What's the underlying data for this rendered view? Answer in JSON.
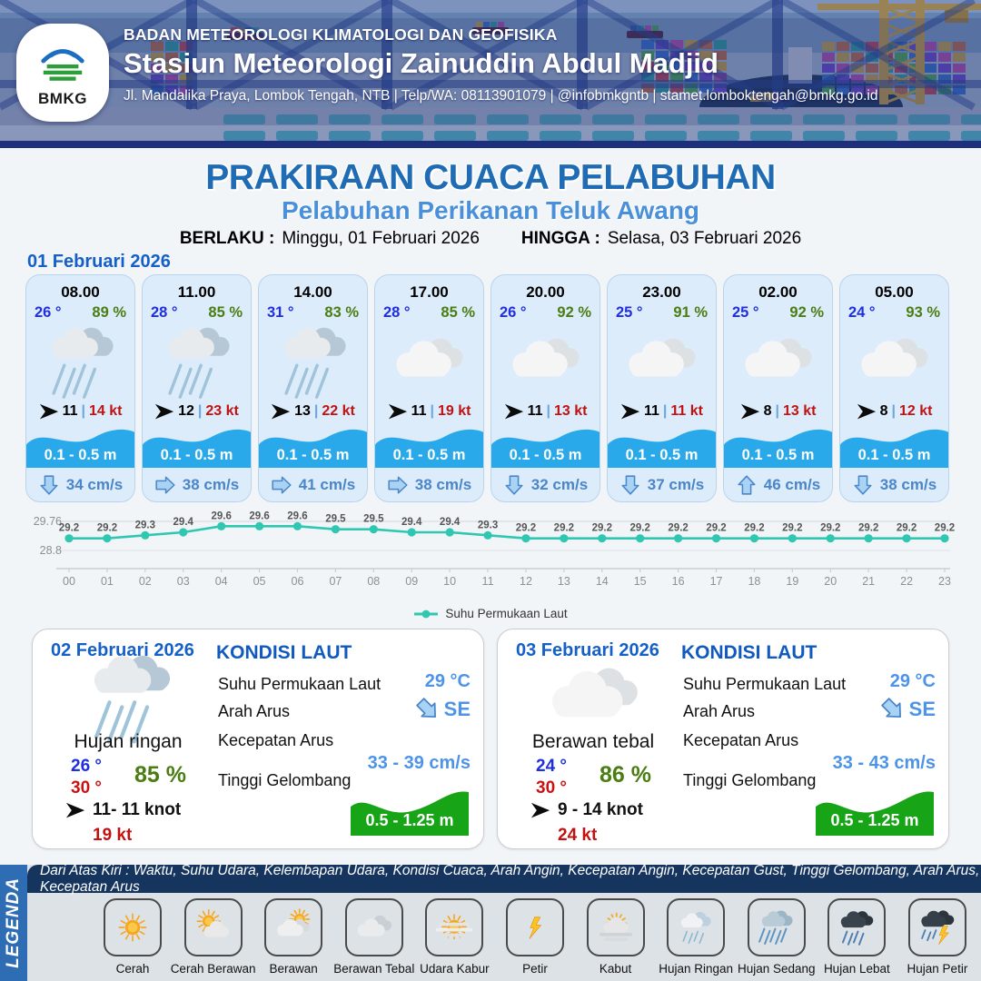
{
  "header": {
    "logo_text": "BMKG",
    "org": "BADAN METEOROLOGI KLIMATOLOGI DAN GEOFISIKA",
    "station": "Stasiun Meteorologi Zainuddin Abdul Madjid",
    "contact": "Jl. Mandalika Praya, Lombok Tengah, NTB | Telp/WA: 08113901079 | @infobmkgntb | stamet.lomboktengah@bmkg.go.id"
  },
  "title": {
    "main": "PRAKIRAAN CUACA PELABUHAN",
    "sub": "Pelabuhan Perikanan Teluk Awang",
    "valid_from_label": "BERLAKU :",
    "valid_from": "Minggu, 01 Februari 2026",
    "valid_to_label": "HINGGA :",
    "valid_to": "Selasa, 03 Februari 2026"
  },
  "ui": {
    "wind_separator": "|"
  },
  "hourly": {
    "date": "01 Februari 2026",
    "cards": [
      {
        "time": "08.00",
        "temp": "26 °",
        "humidity": "89 %",
        "icon": "rain-light",
        "wind": "11",
        "gust": "14 kt",
        "wave": "0.1 - 0.5 m",
        "current_dir": "down",
        "current": "34 cm/s"
      },
      {
        "time": "11.00",
        "temp": "28 °",
        "humidity": "85 %",
        "icon": "rain-light",
        "wind": "12",
        "gust": "23 kt",
        "wave": "0.1 - 0.5 m",
        "current_dir": "right",
        "current": "38 cm/s"
      },
      {
        "time": "14.00",
        "temp": "31 °",
        "humidity": "83 %",
        "icon": "rain-light",
        "wind": "13",
        "gust": "22 kt",
        "wave": "0.1 - 0.5 m",
        "current_dir": "right",
        "current": "41 cm/s"
      },
      {
        "time": "17.00",
        "temp": "28 °",
        "humidity": "85 %",
        "icon": "cloudy",
        "wind": "11",
        "gust": "19 kt",
        "wave": "0.1 - 0.5 m",
        "current_dir": "right",
        "current": "38 cm/s"
      },
      {
        "time": "20.00",
        "temp": "26 °",
        "humidity": "92 %",
        "icon": "cloudy",
        "wind": "11",
        "gust": "13 kt",
        "wave": "0.1 - 0.5 m",
        "current_dir": "down",
        "current": "32 cm/s"
      },
      {
        "time": "23.00",
        "temp": "25 °",
        "humidity": "91 %",
        "icon": "cloudy",
        "wind": "11",
        "gust": "11 kt",
        "wave": "0.1 - 0.5 m",
        "current_dir": "down",
        "current": "37 cm/s"
      },
      {
        "time": "02.00",
        "temp": "25 °",
        "humidity": "92 %",
        "icon": "cloudy",
        "wind": "8",
        "gust": "13 kt",
        "wave": "0.1 - 0.5 m",
        "current_dir": "up",
        "current": "46 cm/s"
      },
      {
        "time": "05.00",
        "temp": "24 °",
        "humidity": "93 %",
        "icon": "cloudy",
        "wind": "8",
        "gust": "12 kt",
        "wave": "0.1 - 0.5 m",
        "current_dir": "down",
        "current": "38 cm/s"
      }
    ]
  },
  "chart_data": {
    "type": "line",
    "x": [
      "00",
      "01",
      "02",
      "03",
      "04",
      "05",
      "06",
      "07",
      "08",
      "09",
      "10",
      "11",
      "12",
      "13",
      "14",
      "15",
      "16",
      "17",
      "18",
      "19",
      "20",
      "21",
      "22",
      "23"
    ],
    "values": [
      29.2,
      29.2,
      29.3,
      29.4,
      29.6,
      29.6,
      29.6,
      29.5,
      29.5,
      29.4,
      29.4,
      29.3,
      29.2,
      29.2,
      29.2,
      29.2,
      29.2,
      29.2,
      29.2,
      29.2,
      29.2,
      29.2,
      29.2,
      29.2
    ],
    "ylim": [
      28.8,
      29.76
    ],
    "yticks": [
      "29.76",
      "28.8"
    ],
    "legend": "Suhu Permukaan Laut",
    "line_color": "#2fc7b2",
    "grid": true,
    "legend_position": "bottom"
  },
  "daily": [
    {
      "date": "02 Februari 2026",
      "icon": "rain-light",
      "condition": "Hujan ringan",
      "temp_min": "26 °",
      "temp_max": "30 °",
      "humidity": "85 %",
      "wind": "11- 11 knot",
      "gust": "19 kt",
      "sea": {
        "title": "KONDISI LAUT",
        "sst_label": "Suhu Permukaan Laut",
        "sst": "29 °C",
        "dir_label": "Arah Arus",
        "dir": "SE",
        "speed_label": "Kecepatan Arus",
        "speed": "33 - 39 cm/s",
        "wave_label": "Tinggi Gelombang",
        "wave": "0.5 - 1.25 m"
      }
    },
    {
      "date": "03 Februari 2026",
      "icon": "cloudy",
      "condition": "Berawan tebal",
      "temp_min": "24 °",
      "temp_max": "30 °",
      "humidity": "86 %",
      "wind": "9 - 14 knot",
      "gust": "24 kt",
      "sea": {
        "title": "KONDISI LAUT",
        "sst_label": "Suhu Permukaan Laut",
        "sst": "29 °C",
        "dir_label": "Arah Arus",
        "dir": "SE",
        "speed_label": "Kecepatan Arus",
        "speed": "33 - 43 cm/s",
        "wave_label": "Tinggi Gelombang",
        "wave": "0.5 - 1.25 m"
      }
    }
  ],
  "legend": {
    "sidebar": "LEGENDA",
    "note": "Dari Atas Kiri : Waktu, Suhu Udara, Kelembapan Udara, Kondisi Cuaca, Arah Angin, Kecepatan Angin, Kecepatan Gust, Tinggi Gelombang, Arah Arus, Kecepatan Arus",
    "items": [
      {
        "label": "Cerah",
        "icon": "sun"
      },
      {
        "label": "Cerah Berawan",
        "icon": "sun-cloud"
      },
      {
        "label": "Berawan",
        "icon": "cloud-sun"
      },
      {
        "label": "Berawan Tebal",
        "icon": "clouds"
      },
      {
        "label": "Udara Kabur",
        "icon": "haze"
      },
      {
        "label": "Petir",
        "icon": "lightning"
      },
      {
        "label": "Kabut",
        "icon": "fog"
      },
      {
        "label": "Hujan Ringan",
        "icon": "rain-light"
      },
      {
        "label": "Hujan Sedang",
        "icon": "rain-moderate"
      },
      {
        "label": "Hujan Lebat",
        "icon": "rain-heavy"
      },
      {
        "label": "Hujan Petir",
        "icon": "rain-thunder"
      }
    ]
  },
  "colors": {
    "title_blue": "#1f6cb4",
    "subtitle_blue": "#4a90d9",
    "date_blue": "#1560c8",
    "temp_blue": "#1f2fe0",
    "humidity_green": "#4a7d12",
    "gust_red": "#c11212",
    "wave_band_blue": "#29a9e9",
    "current_blue": "#4a86c8",
    "sea_value_blue": "#4d94e8",
    "wave_widget_green": "#17a417",
    "chart_teal": "#2fc7b2",
    "legend_strip_navy": "#16355e",
    "legend_sidebar_blue": "#2e6db4"
  }
}
